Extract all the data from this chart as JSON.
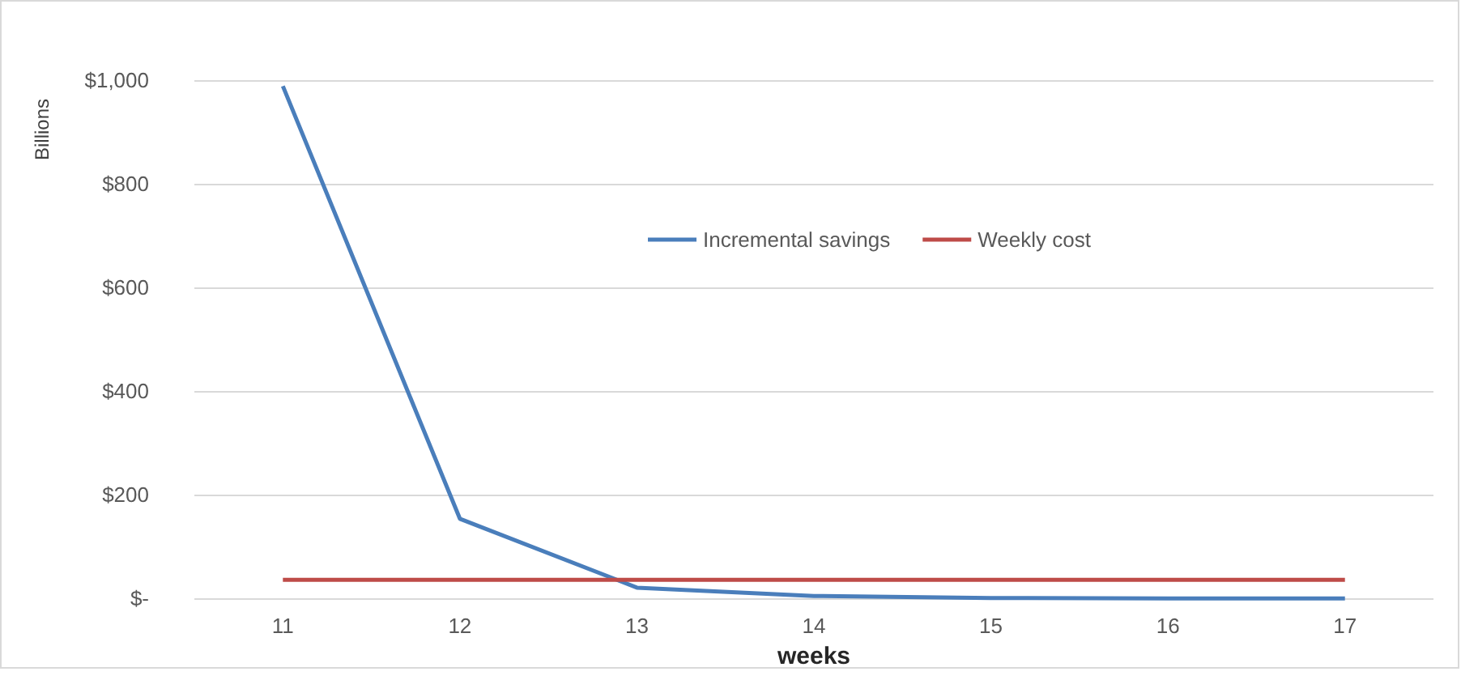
{
  "chart_data": {
    "type": "line",
    "xlabel": "weeks",
    "ylabel": "Billions",
    "categories": [
      "11",
      "12",
      "13",
      "14",
      "15",
      "16",
      "17"
    ],
    "series": [
      {
        "name": "Incremental savings",
        "color": "#4a7ebb",
        "values": [
          990,
          155,
          22,
          6,
          2,
          1,
          1
        ]
      },
      {
        "name": "Weekly cost",
        "color": "#be4b48",
        "values": [
          37,
          37,
          37,
          37,
          37,
          37,
          37
        ]
      }
    ],
    "ylim": [
      0,
      1000
    ],
    "yticks": [
      {
        "value": 0,
        "label": "$-"
      },
      {
        "value": 200,
        "label": "$200"
      },
      {
        "value": 400,
        "label": "$400"
      },
      {
        "value": 600,
        "label": "$600"
      },
      {
        "value": 800,
        "label": "$800"
      },
      {
        "value": 1000,
        "label": "$1,000"
      }
    ],
    "grid": "y",
    "legend": "top right",
    "marker": "none",
    "line_style": "solid"
  }
}
